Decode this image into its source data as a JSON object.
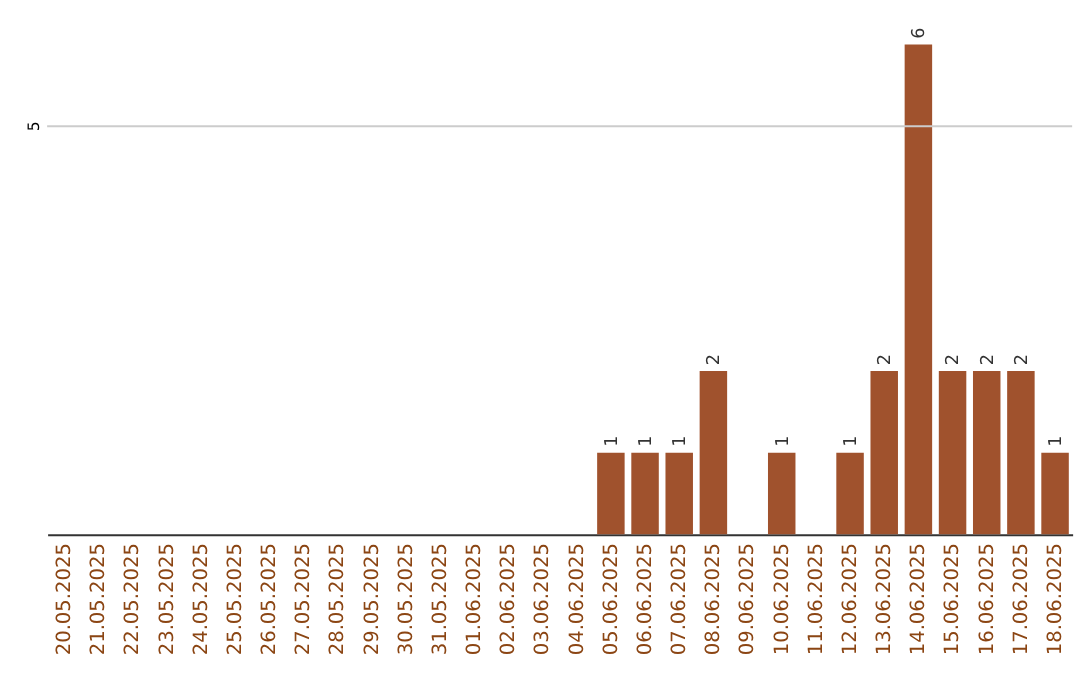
{
  "chart_data": {
    "type": "bar",
    "categories": [
      "20.05.2025",
      "21.05.2025",
      "22.05.2025",
      "23.05.2025",
      "24.05.2025",
      "25.05.2025",
      "26.05.2025",
      "27.05.2025",
      "28.05.2025",
      "29.05.2025",
      "30.05.2025",
      "31.05.2025",
      "01.06.2025",
      "02.06.2025",
      "03.06.2025",
      "04.06.2025",
      "05.06.2025",
      "06.06.2025",
      "07.06.2025",
      "08.06.2025",
      "09.06.2025",
      "10.06.2025",
      "11.06.2025",
      "12.06.2025",
      "13.06.2025",
      "14.06.2025",
      "15.06.2025",
      "16.06.2025",
      "17.06.2025",
      "18.06.2025"
    ],
    "values": [
      null,
      null,
      null,
      null,
      null,
      null,
      null,
      null,
      null,
      null,
      null,
      null,
      null,
      null,
      null,
      null,
      1,
      1,
      1,
      2,
      null,
      1,
      null,
      1,
      2,
      6,
      2,
      2,
      2,
      1
    ],
    "data_labels": true,
    "color": "#a0522d",
    "ref_lines": [
      {
        "axis": "y",
        "value": 5,
        "label": "5",
        "color": "#cccccc"
      }
    ]
  }
}
